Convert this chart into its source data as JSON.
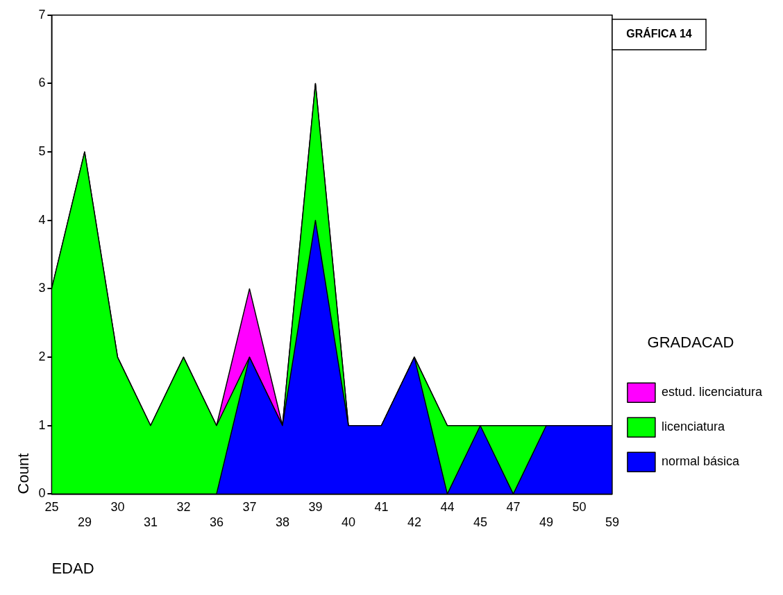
{
  "chart_data": {
    "type": "area",
    "stacked": true,
    "xlabel": "EDAD",
    "ylabel": "Count",
    "legend_title": "GRADACAD",
    "legend": "right",
    "grid": false,
    "annotations": [
      "GRÁFICA 14"
    ],
    "categories": [
      "25",
      "29",
      "30",
      "31",
      "32",
      "36",
      "37",
      "38",
      "39",
      "40",
      "41",
      "42",
      "44",
      "45",
      "47",
      "49",
      "50",
      "59"
    ],
    "ylim": [
      0,
      7
    ],
    "yticks": [
      0,
      1,
      2,
      3,
      4,
      5,
      6,
      7
    ],
    "series": [
      {
        "name": "normal básica",
        "color": "#0000ff",
        "values": [
          0,
          0,
          0,
          0,
          0,
          0,
          2,
          1,
          4,
          1,
          1,
          2,
          0,
          1,
          0,
          1,
          1,
          1
        ]
      },
      {
        "name": "licenciatura",
        "color": "#00ff00",
        "values": [
          3,
          5,
          2,
          1,
          2,
          1,
          0,
          0,
          2,
          0,
          0,
          0,
          1,
          0,
          1,
          0,
          0,
          0
        ]
      },
      {
        "name": "estud. licenciatura",
        "color": "#ff00ff",
        "values": [
          0,
          0,
          0,
          0,
          0,
          0,
          1,
          0,
          0,
          0,
          0,
          0,
          0,
          0,
          0,
          0,
          0,
          0
        ]
      }
    ]
  }
}
